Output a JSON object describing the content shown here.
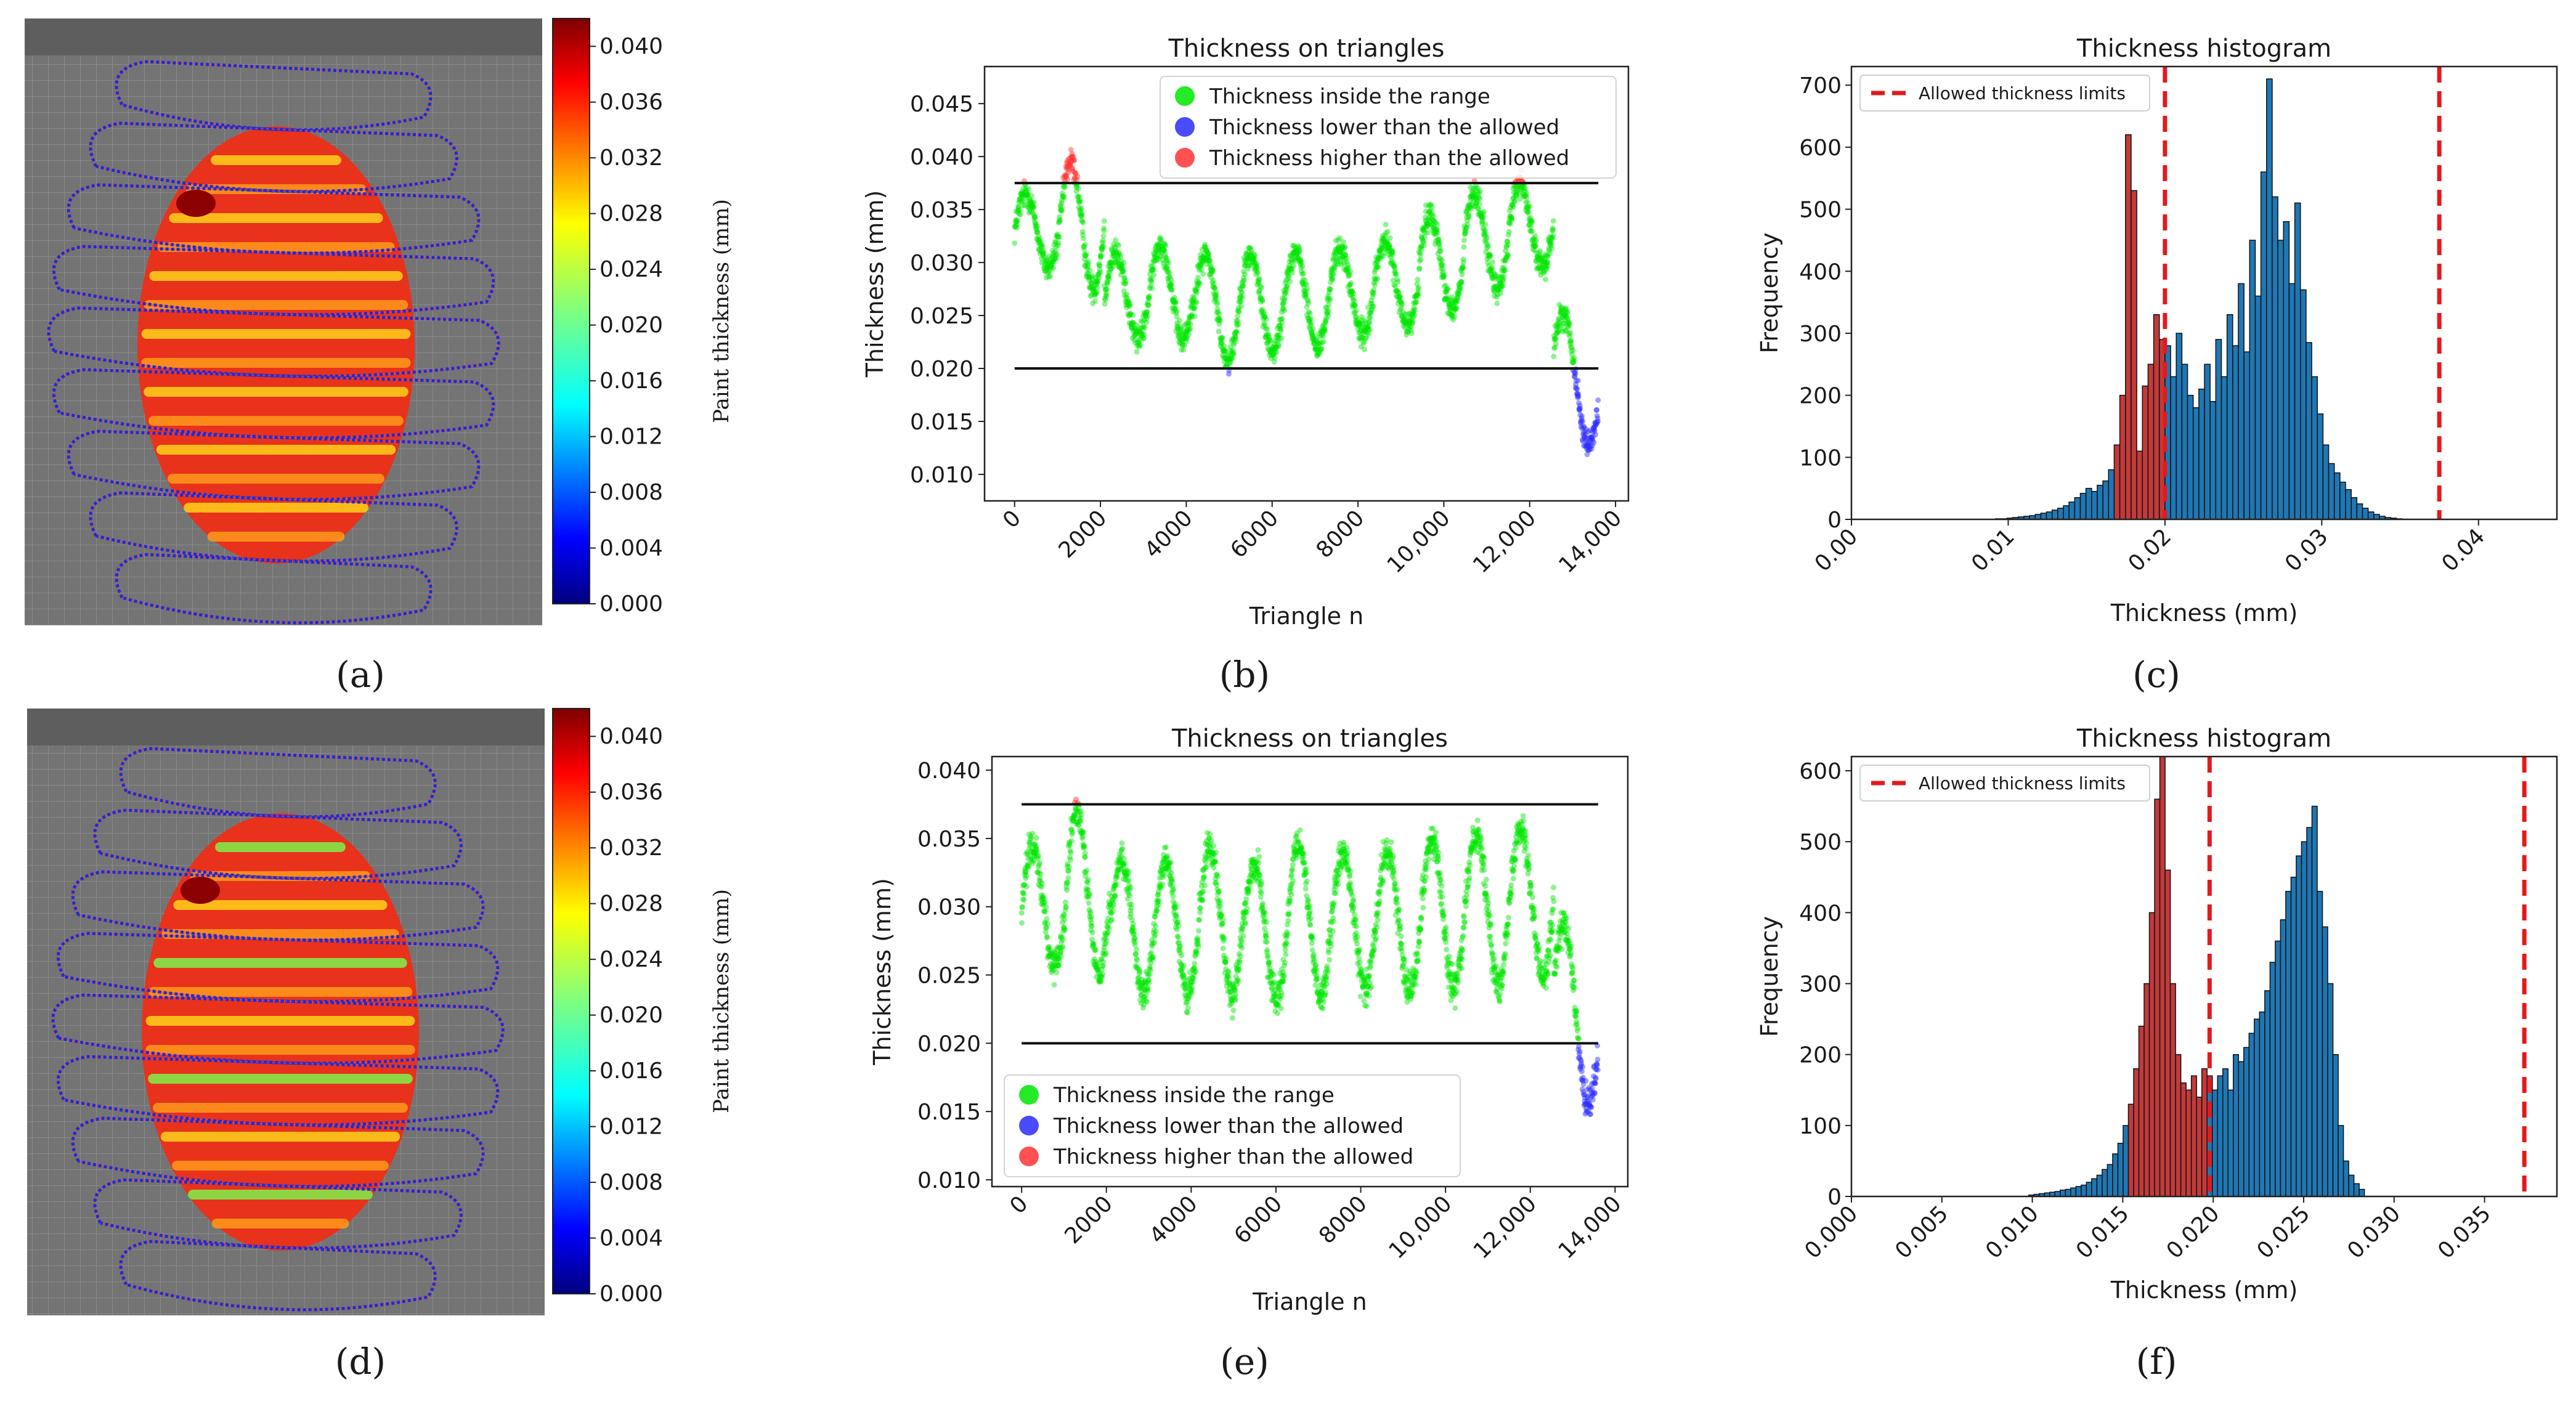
{
  "chart_data": [
    {
      "panel": "a",
      "type": "heatmap",
      "description": "3D render of painted ellipsoid with thickness colormap and spray trajectories",
      "colorbar": {
        "label": "Paint thickness (mm)",
        "ticks": [
          "0.000",
          "0.004",
          "0.008",
          "0.012",
          "0.016",
          "0.020",
          "0.024",
          "0.028",
          "0.032",
          "0.036",
          "0.040"
        ],
        "range": [
          0.0,
          0.042
        ]
      }
    },
    {
      "panel": "b",
      "type": "scatter",
      "title": "Thickness on triangles",
      "xlabel": "Triangle n",
      "ylabel": "Thickness (mm)",
      "xlim": [
        -700,
        14300
      ],
      "ylim": [
        0.0075,
        0.0485
      ],
      "xticks": [
        0,
        2000,
        4000,
        6000,
        8000,
        10000,
        12000,
        14000
      ],
      "xtick_labels": [
        "0",
        "2000",
        "4000",
        "6000",
        "8000",
        "10,000",
        "12,000",
        "14,000"
      ],
      "yticks": [
        0.01,
        0.015,
        0.02,
        0.025,
        0.03,
        0.035,
        0.04,
        0.045
      ],
      "ytick_labels": [
        "0.010",
        "0.015",
        "0.020",
        "0.025",
        "0.030",
        "0.035",
        "0.040",
        "0.045"
      ],
      "limits": [
        0.02,
        0.0375
      ],
      "legend": [
        "Thickness inside the range",
        "Thickness lower than the allowed",
        "Thickness higher than the allowed"
      ],
      "legend_loc": "top-right",
      "series_colors": [
        "#00e600",
        "#2a2aff",
        "#ff3333"
      ],
      "n_points": 13600,
      "cycles": 13,
      "center_values": [
        0.033,
        0.0335,
        0.0268,
        0.0272,
        0.0258,
        0.0262,
        0.0265,
        0.0272,
        0.028,
        0.03,
        0.032,
        0.0335,
        0.022
      ],
      "amplitudes": [
        0.0035,
        0.006,
        0.004,
        0.0045,
        0.005,
        0.0045,
        0.0045,
        0.004,
        0.004,
        0.0045,
        0.0045,
        0.004,
        0.0045
      ]
    },
    {
      "panel": "c",
      "type": "bar",
      "title": "Thickness histogram",
      "xlabel": "Thickness (mm)",
      "ylabel": "Frequency",
      "xlim": [
        0.0,
        0.045
      ],
      "ylim": [
        0,
        730
      ],
      "xticks": [
        0.0,
        0.01,
        0.02,
        0.03,
        0.04
      ],
      "xtick_labels": [
        "0.00",
        "0.01",
        "0.02",
        "0.03",
        "0.04"
      ],
      "yticks": [
        0,
        100,
        200,
        300,
        400,
        500,
        600,
        700
      ],
      "ytick_labels": [
        "0",
        "100",
        "200",
        "300",
        "400",
        "500",
        "600",
        "700"
      ],
      "limits": [
        0.02,
        0.0375
      ],
      "legend": [
        "Allowed thickness limits"
      ],
      "legend_loc": "top-left",
      "bin_start": 0.0092,
      "bin_width": 0.00036,
      "values": [
        1,
        1,
        2,
        3,
        4,
        5,
        6,
        8,
        10,
        12,
        15,
        18,
        22,
        28,
        35,
        42,
        50,
        45,
        55,
        62,
        80,
        120,
        200,
        620,
        530,
        110,
        215,
        250,
        330,
        290,
        280,
        230,
        300,
        250,
        200,
        180,
        210,
        250,
        190,
        290,
        230,
        330,
        280,
        380,
        270,
        450,
        360,
        560,
        710,
        520,
        450,
        480,
        380,
        510,
        370,
        285,
        230,
        170,
        120,
        90,
        75,
        60,
        48,
        35,
        25,
        18,
        12,
        8,
        5,
        3,
        2,
        1
      ]
    },
    {
      "panel": "d",
      "type": "heatmap",
      "description": "3D render of painted ellipsoid with thickness colormap and spray trajectories",
      "colorbar": {
        "label": "Paint thickness (mm)",
        "ticks": [
          "0.000",
          "0.004",
          "0.008",
          "0.012",
          "0.016",
          "0.020",
          "0.024",
          "0.028",
          "0.032",
          "0.036",
          "0.040"
        ],
        "range": [
          0.0,
          0.042
        ]
      }
    },
    {
      "panel": "e",
      "type": "scatter",
      "title": "Thickness on triangles",
      "xlabel": "Triangle n",
      "ylabel": "Thickness (mm)",
      "xlim": [
        -700,
        14300
      ],
      "ylim": [
        0.0095,
        0.041
      ],
      "xticks": [
        0,
        2000,
        4000,
        6000,
        8000,
        10000,
        12000,
        14000
      ],
      "xtick_labels": [
        "0",
        "2000",
        "4000",
        "6000",
        "8000",
        "10,000",
        "12,000",
        "14,000"
      ],
      "yticks": [
        0.01,
        0.015,
        0.02,
        0.025,
        0.03,
        0.035,
        0.04
      ],
      "ytick_labels": [
        "0.010",
        "0.015",
        "0.020",
        "0.025",
        "0.030",
        "0.035",
        "0.040"
      ],
      "limits": [
        0.02,
        0.0375
      ],
      "legend": [
        "Thickness inside the range",
        "Thickness lower than the allowed",
        "Thickness higher than the allowed"
      ],
      "legend_loc": "bottom-left",
      "series_colors": [
        "#00e600",
        "#2a2aff",
        "#ff3333"
      ],
      "n_points": 13600,
      "cycles": 13,
      "center_values": [
        0.03,
        0.031,
        0.0285,
        0.0285,
        0.029,
        0.0282,
        0.029,
        0.029,
        0.029,
        0.0295,
        0.03,
        0.0305,
        0.025
      ],
      "amplitudes": [
        0.0045,
        0.006,
        0.005,
        0.005,
        0.0055,
        0.005,
        0.0055,
        0.005,
        0.005,
        0.0055,
        0.0055,
        0.0055,
        0.005
      ]
    },
    {
      "panel": "f",
      "type": "bar",
      "title": "Thickness histogram",
      "xlabel": "Thickness (mm)",
      "ylabel": "Frequency",
      "xlim": [
        0.0,
        0.039
      ],
      "ylim": [
        0,
        620
      ],
      "xticks": [
        0.0,
        0.005,
        0.01,
        0.015,
        0.02,
        0.025,
        0.03,
        0.035
      ],
      "xtick_labels": [
        "0.000",
        "0.005",
        "0.010",
        "0.015",
        "0.020",
        "0.025",
        "0.030",
        "0.035"
      ],
      "yticks": [
        0,
        100,
        200,
        300,
        400,
        500,
        600
      ],
      "ytick_labels": [
        "0",
        "100",
        "200",
        "300",
        "400",
        "500",
        "600"
      ],
      "limits": [
        0.0198,
        0.0372
      ],
      "legend": [
        "Allowed thickness limits"
      ],
      "legend_loc": "top-left",
      "bin_start": 0.0098,
      "bin_width": 0.00029,
      "values": [
        2,
        3,
        4,
        5,
        6,
        7,
        9,
        10,
        12,
        14,
        16,
        20,
        25,
        30,
        38,
        45,
        60,
        75,
        100,
        130,
        180,
        240,
        300,
        400,
        560,
        620,
        460,
        300,
        200,
        160,
        150,
        170,
        140,
        180,
        170,
        150,
        170,
        180,
        150,
        200,
        190,
        210,
        230,
        250,
        260,
        290,
        330,
        360,
        390,
        430,
        450,
        480,
        500,
        520,
        550,
        430,
        380,
        300,
        200,
        100,
        50,
        30,
        18,
        10
      ]
    }
  ],
  "panel_labels": [
    "(a)",
    "(b)",
    "(c)",
    "(d)",
    "(e)",
    "(f)"
  ]
}
